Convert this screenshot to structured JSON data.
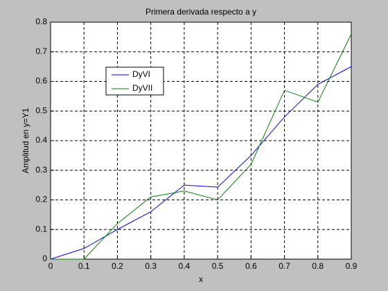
{
  "chart_data": {
    "type": "line",
    "title": "Primera derivada respecto a y",
    "x_label": "x",
    "y_label": "Amplitud en y=Y1",
    "x": [
      0,
      0.1,
      0.2,
      0.3,
      0.4,
      0.5,
      0.6,
      0.7,
      0.8,
      0.9
    ],
    "series": [
      {
        "name": "DyVI",
        "color": "#0000ff",
        "values": [
          0,
          0.036,
          0.1,
          0.16,
          0.25,
          0.243,
          0.35,
          0.48,
          0.59,
          0.65
        ]
      },
      {
        "name": "DyVII",
        "color": "#008000",
        "values": [
          0,
          0,
          0.12,
          0.21,
          0.23,
          0.2,
          0.32,
          0.57,
          0.53,
          0.76
        ]
      }
    ],
    "xlim": [
      0,
      0.9
    ],
    "ylim": [
      0,
      0.8
    ],
    "xticks": [
      0,
      0.1,
      0.2,
      0.3,
      0.4,
      0.5,
      0.6,
      0.7,
      0.8,
      0.9
    ],
    "yticks": [
      0,
      0.1,
      0.2,
      0.3,
      0.4,
      0.5,
      0.6,
      0.7,
      0.8
    ],
    "grid": true,
    "legend": "upper-left"
  }
}
